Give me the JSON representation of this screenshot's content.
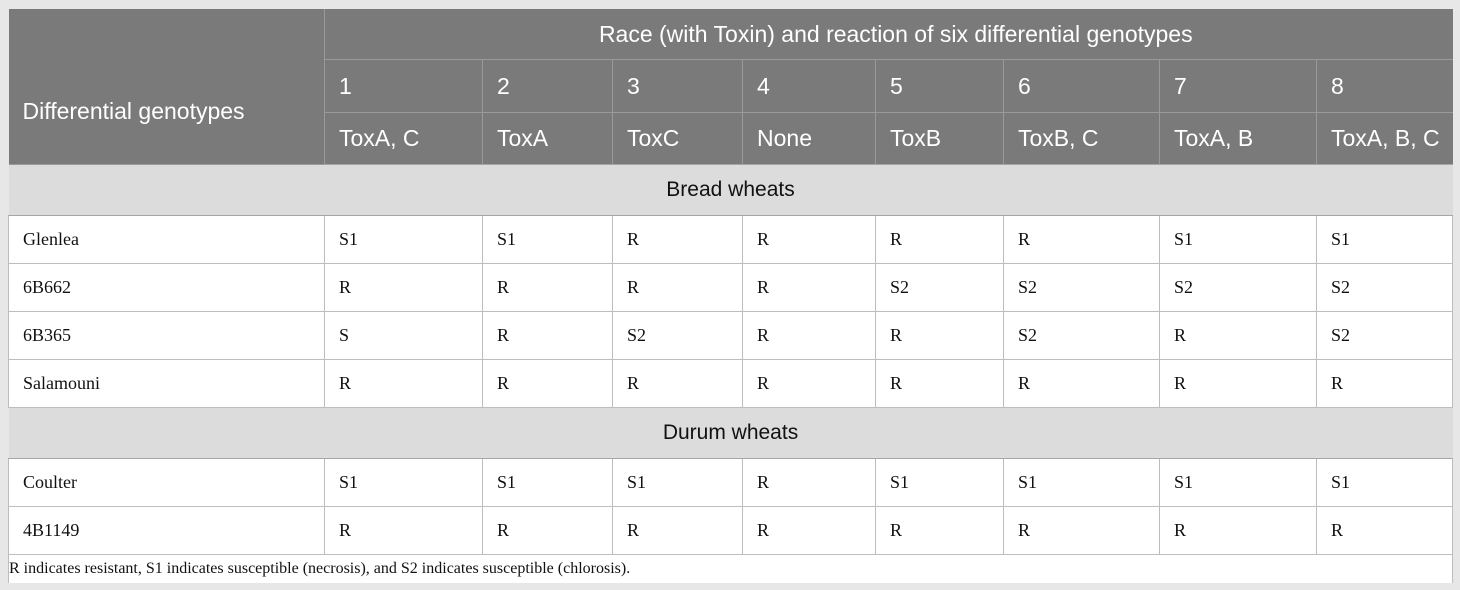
{
  "header": {
    "row_header": "Differential genotypes",
    "span_title": "Race (with Toxin) and reaction of six differential genotypes",
    "races": [
      "1",
      "2",
      "3",
      "4",
      "5",
      "6",
      "7",
      "8"
    ],
    "toxins": [
      "ToxA, C",
      "ToxA",
      "ToxC",
      "None",
      "ToxB",
      "ToxB, C",
      "ToxA, B",
      "ToxA, B, C"
    ]
  },
  "sections": [
    {
      "title": "Bread wheats",
      "rows": [
        {
          "name": "Glenlea",
          "values": [
            "S1",
            "S1",
            "R",
            "R",
            "R",
            "R",
            "S1",
            "S1"
          ]
        },
        {
          "name": "6B662",
          "values": [
            "R",
            "R",
            "R",
            "R",
            "S2",
            "S2",
            "S2",
            "S2"
          ]
        },
        {
          "name": "6B365",
          "values": [
            "S",
            "R",
            "S2",
            "R",
            "R",
            "S2",
            "R",
            "S2"
          ]
        },
        {
          "name": "Salamouni",
          "values": [
            "R",
            "R",
            "R",
            "R",
            "R",
            "R",
            "R",
            "R"
          ]
        }
      ]
    },
    {
      "title": "Durum wheats",
      "rows": [
        {
          "name": "Coulter",
          "values": [
            "S1",
            "S1",
            "S1",
            "R",
            "S1",
            "S1",
            "S1",
            "S1"
          ]
        },
        {
          "name": "4B1149",
          "values": [
            "R",
            "R",
            "R",
            "R",
            "R",
            "R",
            "R",
            "R"
          ]
        }
      ]
    }
  ],
  "footnote": "R indicates resistant, S1 indicates susceptible (necrosis), and S2 indicates susceptible (chlorosis)."
}
